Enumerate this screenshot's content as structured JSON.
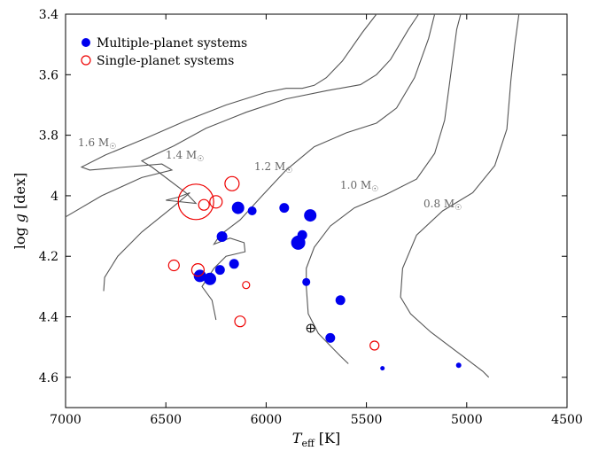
{
  "chart_data": {
    "type": "scatter",
    "xlabel": "T_eff [K]",
    "xlabel_main": "T",
    "xlabel_sub": "eff",
    "xlabel_unit": "[K]",
    "ylabel": "log g [dex]",
    "ylabel_prefix": "log ",
    "ylabel_var": "g",
    "ylabel_unit": "[dex]",
    "xlim": [
      7000,
      4500
    ],
    "ylim": [
      3.4,
      4.7
    ],
    "x_reversed": true,
    "y_reversed": true,
    "xticks": [
      7000,
      6500,
      6000,
      5500,
      5000,
      4500
    ],
    "xtick_labels": [
      "7000",
      "6500",
      "6000",
      "5500",
      "5000",
      "4500"
    ],
    "yticks": [
      3.4,
      3.6,
      3.8,
      4.0,
      4.2,
      4.4,
      4.6
    ],
    "ytick_labels": [
      "3.4",
      "3.6",
      "3.8",
      "4",
      "4.2",
      "4.4",
      "4.6"
    ],
    "grid": false,
    "legend_position": "top-left",
    "colors": {
      "multi": "#0000ee",
      "single": "#ee0000",
      "track": "#555555",
      "track_label": "#666666",
      "sun": "#000000"
    },
    "series": [
      {
        "name": "Multiple-planet systems",
        "marker": "filled-circle",
        "points": [
          {
            "x": 6140,
            "y": 4.04,
            "r": 7
          },
          {
            "x": 6070,
            "y": 4.05,
            "r": 5
          },
          {
            "x": 5910,
            "y": 4.04,
            "r": 5.5
          },
          {
            "x": 5780,
            "y": 4.065,
            "r": 7
          },
          {
            "x": 5820,
            "y": 4.13,
            "r": 5.5
          },
          {
            "x": 5840,
            "y": 4.155,
            "r": 8
          },
          {
            "x": 6220,
            "y": 4.135,
            "r": 6
          },
          {
            "x": 6160,
            "y": 4.225,
            "r": 5.5
          },
          {
            "x": 6230,
            "y": 4.245,
            "r": 5.5
          },
          {
            "x": 6330,
            "y": 4.265,
            "r": 7
          },
          {
            "x": 6280,
            "y": 4.275,
            "r": 7
          },
          {
            "x": 5800,
            "y": 4.285,
            "r": 4.5
          },
          {
            "x": 5630,
            "y": 4.345,
            "r": 5.5
          },
          {
            "x": 5680,
            "y": 4.47,
            "r": 5.5
          },
          {
            "x": 5420,
            "y": 4.57,
            "r": 2.5
          },
          {
            "x": 5040,
            "y": 4.56,
            "r": 3
          }
        ]
      },
      {
        "name": "Single-planet systems",
        "marker": "open-circle",
        "points": [
          {
            "x": 6350,
            "y": 4.02,
            "r": 20
          },
          {
            "x": 6310,
            "y": 4.03,
            "r": 6
          },
          {
            "x": 6250,
            "y": 4.02,
            "r": 7
          },
          {
            "x": 6170,
            "y": 3.96,
            "r": 8
          },
          {
            "x": 6460,
            "y": 4.23,
            "r": 6
          },
          {
            "x": 6340,
            "y": 4.245,
            "r": 7
          },
          {
            "x": 6100,
            "y": 4.295,
            "r": 4
          },
          {
            "x": 6130,
            "y": 4.415,
            "r": 6
          },
          {
            "x": 5460,
            "y": 4.495,
            "r": 5
          }
        ]
      }
    ],
    "sun": {
      "x": 5778,
      "y": 4.438
    },
    "tracks": [
      {
        "label": "1.6 M☉",
        "label_main": "1.6 M",
        "label_sub": "☉",
        "points": [
          [
            7000,
            4.07
          ],
          [
            6820,
            4.0
          ],
          [
            6620,
            3.94
          ],
          [
            6470,
            3.915
          ],
          [
            6520,
            3.895
          ],
          [
            6700,
            3.905
          ],
          [
            6880,
            3.915
          ],
          [
            6920,
            3.905
          ],
          [
            6800,
            3.865
          ],
          [
            6600,
            3.81
          ],
          [
            6400,
            3.752
          ],
          [
            6200,
            3.7
          ],
          [
            6000,
            3.658
          ],
          [
            5900,
            3.645
          ],
          [
            5820,
            3.645
          ],
          [
            5760,
            3.635
          ],
          [
            5700,
            3.61
          ],
          [
            5620,
            3.555
          ],
          [
            5520,
            3.46
          ],
          [
            5450,
            3.4
          ]
        ]
      },
      {
        "label": "1.4 M☉",
        "label_main": "1.4 M",
        "label_sub": "☉",
        "points": [
          [
            6810,
            4.315
          ],
          [
            6805,
            4.27
          ],
          [
            6740,
            4.2
          ],
          [
            6620,
            4.12
          ],
          [
            6470,
            4.04
          ],
          [
            6380,
            3.99
          ],
          [
            6440,
            4.005
          ],
          [
            6500,
            4.015
          ],
          [
            6350,
            4.025
          ],
          [
            6400,
            3.99
          ],
          [
            6570,
            3.905
          ],
          [
            6620,
            3.885
          ],
          [
            6460,
            3.835
          ],
          [
            6300,
            3.777
          ],
          [
            6100,
            3.724
          ],
          [
            5900,
            3.68
          ],
          [
            5700,
            3.653
          ],
          [
            5530,
            3.633
          ],
          [
            5450,
            3.6
          ],
          [
            5380,
            3.55
          ],
          [
            5290,
            3.45
          ],
          [
            5240,
            3.4
          ]
        ]
      },
      {
        "label": "1.2 M☉",
        "label_main": "1.2 M",
        "label_sub": "☉",
        "points": [
          [
            6250,
            4.41
          ],
          [
            6270,
            4.345
          ],
          [
            6320,
            4.3
          ],
          [
            6260,
            4.24
          ],
          [
            6200,
            4.2
          ],
          [
            6105,
            4.185
          ],
          [
            6110,
            4.155
          ],
          [
            6180,
            4.14
          ],
          [
            6260,
            4.16
          ],
          [
            6230,
            4.13
          ],
          [
            6130,
            4.08
          ],
          [
            6020,
            4.0
          ],
          [
            5900,
            3.915
          ],
          [
            5760,
            3.838
          ],
          [
            5600,
            3.792
          ],
          [
            5450,
            3.76
          ],
          [
            5350,
            3.71
          ],
          [
            5260,
            3.61
          ],
          [
            5190,
            3.48
          ],
          [
            5160,
            3.4
          ]
        ]
      },
      {
        "label": "1.0 M☉",
        "label_main": "1.0 M",
        "label_sub": "☉",
        "points": [
          [
            5590,
            4.555
          ],
          [
            5630,
            4.53
          ],
          [
            5740,
            4.455
          ],
          [
            5790,
            4.39
          ],
          [
            5800,
            4.3
          ],
          [
            5800,
            4.24
          ],
          [
            5760,
            4.17
          ],
          [
            5680,
            4.1
          ],
          [
            5560,
            4.04
          ],
          [
            5400,
            3.995
          ],
          [
            5250,
            3.945
          ],
          [
            5160,
            3.86
          ],
          [
            5110,
            3.75
          ],
          [
            5080,
            3.6
          ],
          [
            5050,
            3.45
          ],
          [
            5030,
            3.4
          ]
        ]
      },
      {
        "label": "0.8 M☉",
        "label_main": "0.8 M",
        "label_sub": "☉",
        "points": [
          [
            4890,
            4.6
          ],
          [
            4920,
            4.58
          ],
          [
            5020,
            4.53
          ],
          [
            5180,
            4.45
          ],
          [
            5280,
            4.39
          ],
          [
            5330,
            4.335
          ],
          [
            5320,
            4.24
          ],
          [
            5250,
            4.13
          ],
          [
            5120,
            4.05
          ],
          [
            4970,
            3.99
          ],
          [
            4860,
            3.9
          ],
          [
            4800,
            3.78
          ],
          [
            4780,
            3.62
          ],
          [
            4760,
            3.5
          ],
          [
            4740,
            3.4
          ]
        ]
      }
    ]
  }
}
